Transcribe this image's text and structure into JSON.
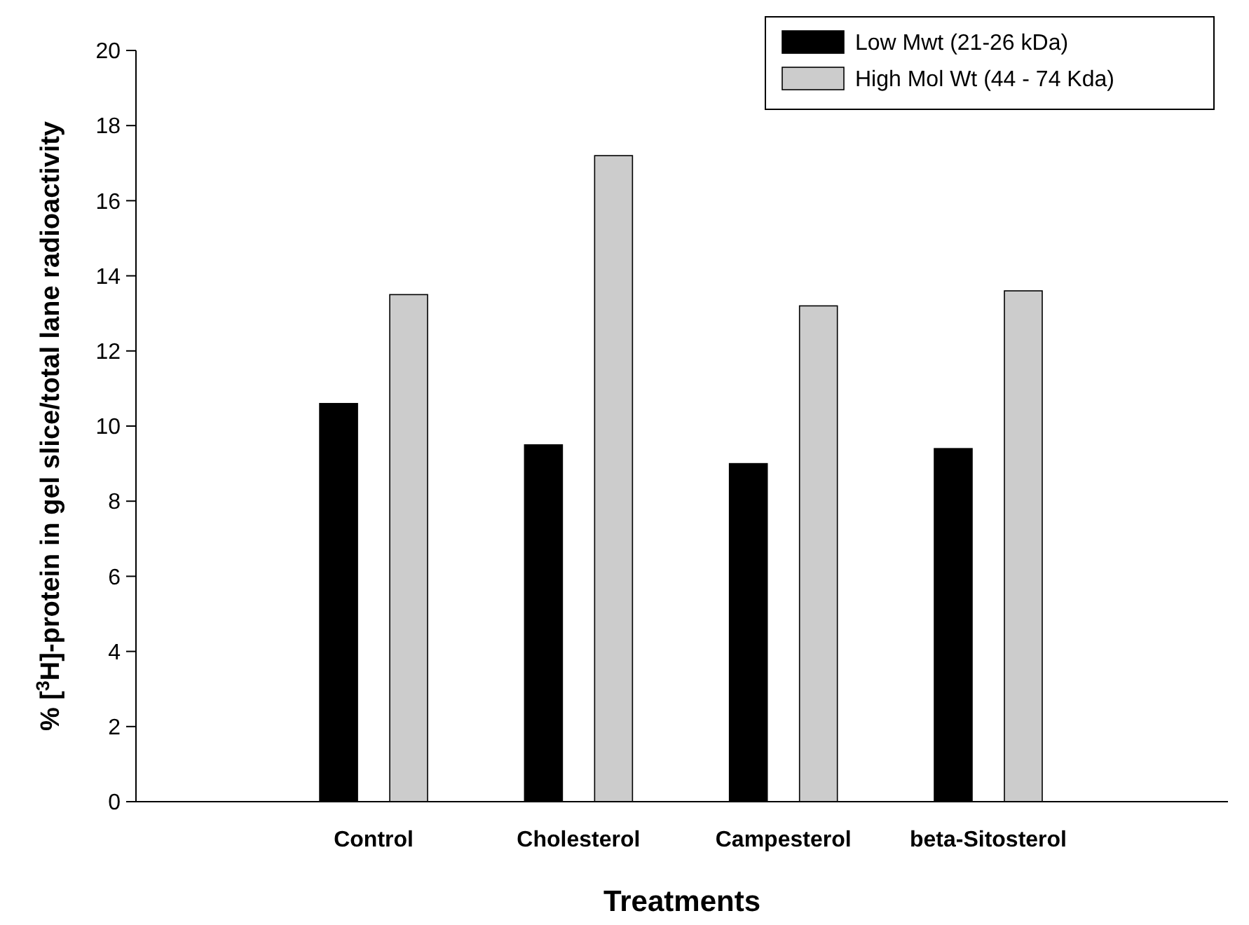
{
  "chart_data": {
    "type": "bar",
    "xlabel": "Treatments",
    "ylabel": "% [$^{3}$H]-protein in gel slice/total lane radioactivity",
    "categories": [
      "Control",
      "Cholesterol",
      "Campesterol",
      "beta-Sitosterol"
    ],
    "series": [
      {
        "name": "Low Mwt (21-26 kDa)",
        "color": "#000000",
        "values": [
          10.6,
          9.5,
          9.0,
          9.4
        ]
      },
      {
        "name": "High Mol Wt (44 - 74 Kda)",
        "color": "#cccccc",
        "values": [
          13.5,
          17.2,
          13.2,
          13.6
        ]
      }
    ],
    "ylim": [
      0,
      20
    ],
    "yticks": [
      0,
      2,
      4,
      6,
      8,
      10,
      12,
      14,
      16,
      18,
      20
    ],
    "grid": false,
    "legend": "top right"
  }
}
